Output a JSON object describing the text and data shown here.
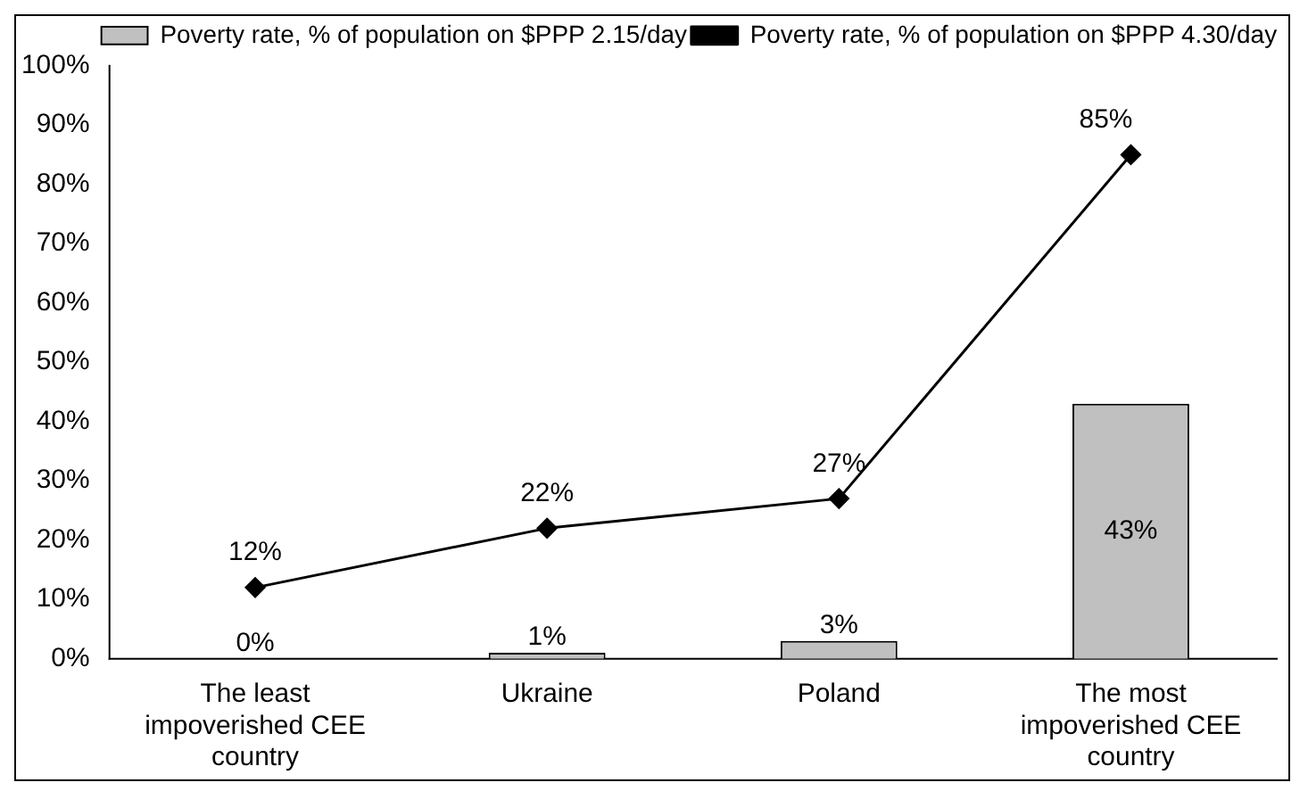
{
  "chart_data": {
    "type": "bar",
    "categories": [
      "The least impoverished CEE country",
      "Ukraine",
      "Poland",
      "The most impoverished CEE country"
    ],
    "series": [
      {
        "name": "Poverty rate, % of population on $PPP 2.15/day",
        "color": "#c0c0c0",
        "values": [
          0,
          1,
          3,
          43
        ],
        "value_labels": [
          "0%",
          "1%",
          "3%",
          "43%"
        ]
      },
      {
        "name": "Poverty rate, % of population on $PPP 4.30/day",
        "type": "line",
        "color": "#000000",
        "values": [
          12,
          22,
          27,
          85
        ],
        "value_labels": [
          "12%",
          "22%",
          "27%",
          "85%"
        ]
      }
    ],
    "ylim": [
      0,
      100
    ],
    "yticks": [
      {
        "value": 0,
        "label": "0%"
      },
      {
        "value": 10,
        "label": "10%"
      },
      {
        "value": 20,
        "label": "20%"
      },
      {
        "value": 30,
        "label": "30%"
      },
      {
        "value": 40,
        "label": "40%"
      },
      {
        "value": 50,
        "label": "50%"
      },
      {
        "value": 60,
        "label": "60%"
      },
      {
        "value": 70,
        "label": "70%"
      },
      {
        "value": 80,
        "label": "80%"
      },
      {
        "value": 90,
        "label": "90%"
      },
      {
        "value": 100,
        "label": "100%"
      }
    ],
    "grid": false,
    "legend": "top right",
    "marker": "diamond",
    "line_style": "solid"
  }
}
